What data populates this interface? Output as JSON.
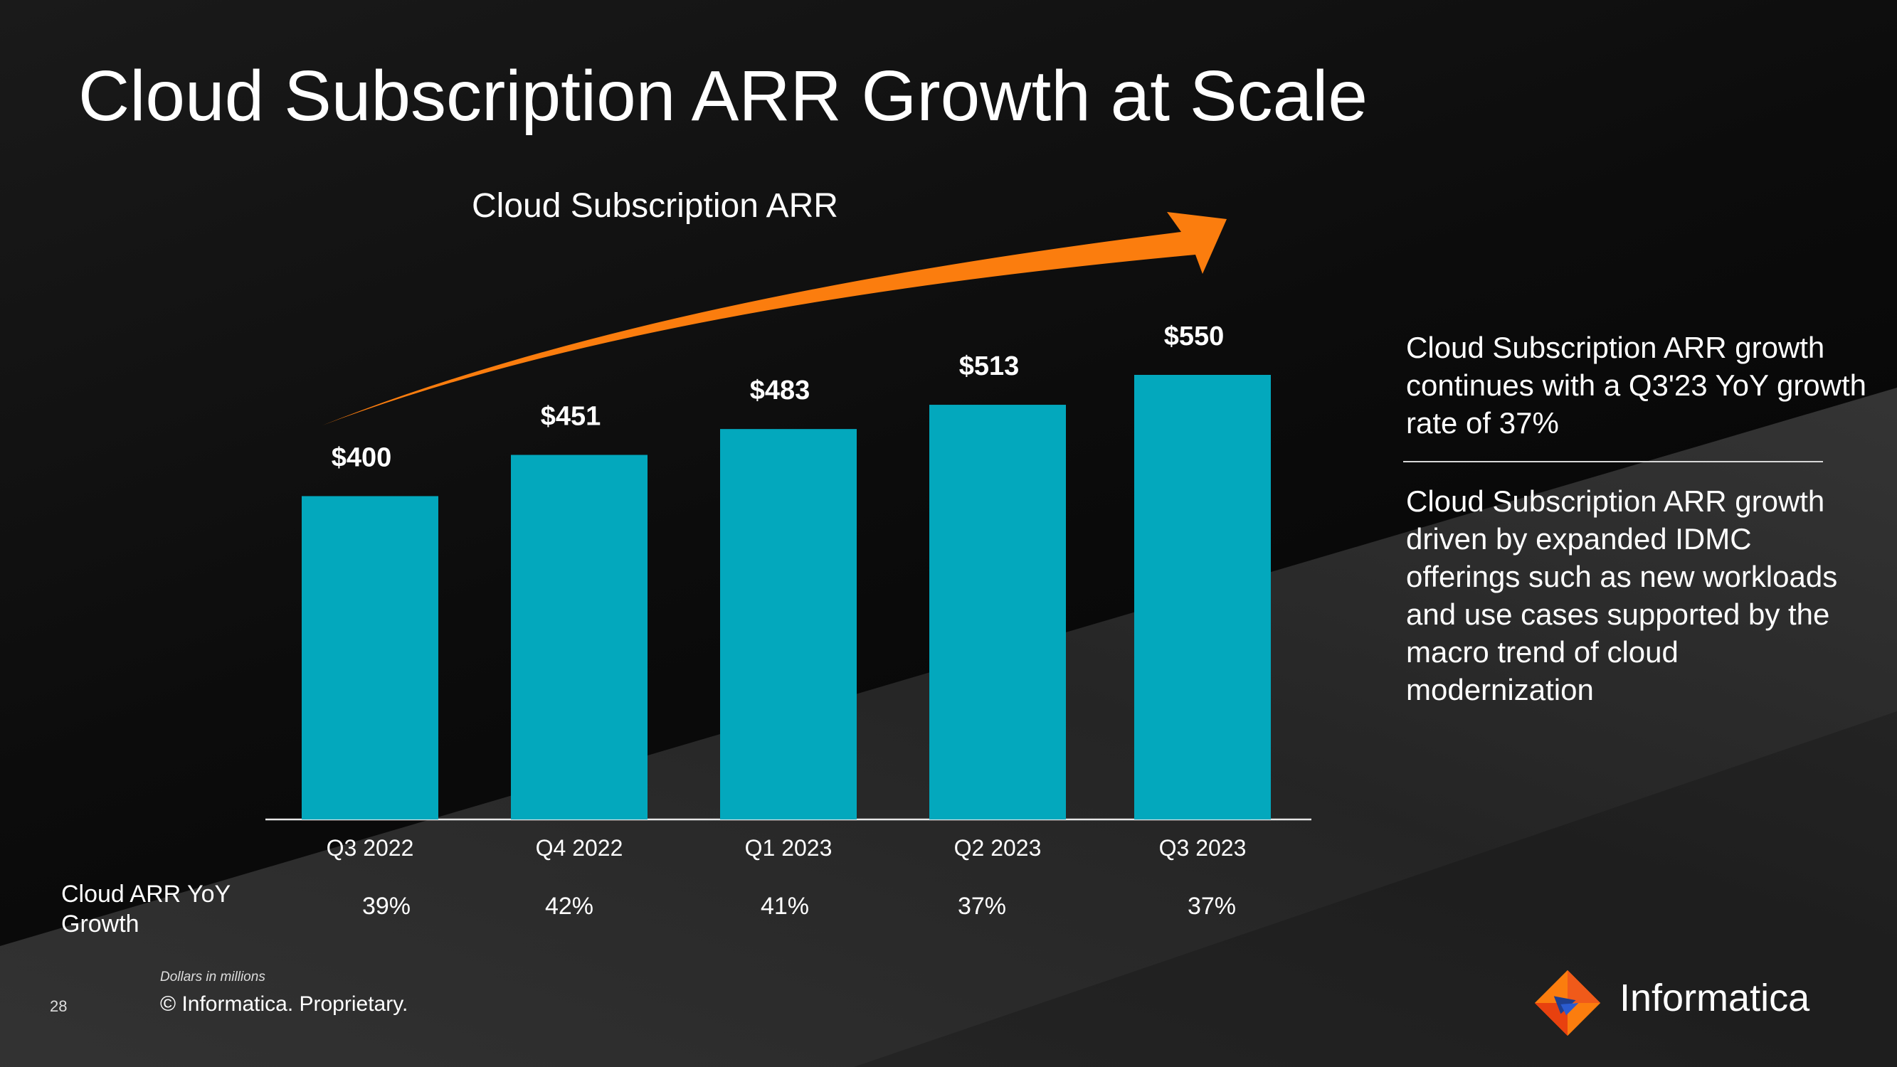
{
  "slide": {
    "title": "Cloud Subscription ARR Growth at Scale",
    "page_number": "28",
    "note": "Dollars in millions",
    "copyright": "© Informatica. Proprietary.",
    "brand": "Informatica",
    "colors": {
      "bar": "#03a8bd",
      "arrow": "#fb7d0e",
      "text": "#ffffff"
    }
  },
  "yoy": {
    "label": "Cloud ARR YoY Growth",
    "values": [
      "39%",
      "42%",
      "41%",
      "37%",
      "37%"
    ]
  },
  "side": {
    "point_1": "Cloud Subscription ARR growth continues with a Q3'23 YoY growth rate of 37%",
    "point_2": "Cloud Subscription ARR growth driven by expanded IDMC offerings such as new workloads and use cases supported by the macro trend of cloud modernization"
  },
  "chart_data": {
    "type": "bar",
    "title": "Cloud Subscription ARR",
    "categories": [
      "Q3 2022",
      "Q4 2022",
      "Q1 2023",
      "Q2 2023",
      "Q3 2023"
    ],
    "values": [
      400,
      451,
      483,
      513,
      550
    ],
    "value_labels": [
      "$400",
      "$451",
      "$483",
      "$513",
      "$550"
    ],
    "xlabel": "",
    "ylabel": "",
    "ylim": [
      0,
      600
    ],
    "grid": false,
    "legend": "none",
    "trend_arrow": true
  }
}
